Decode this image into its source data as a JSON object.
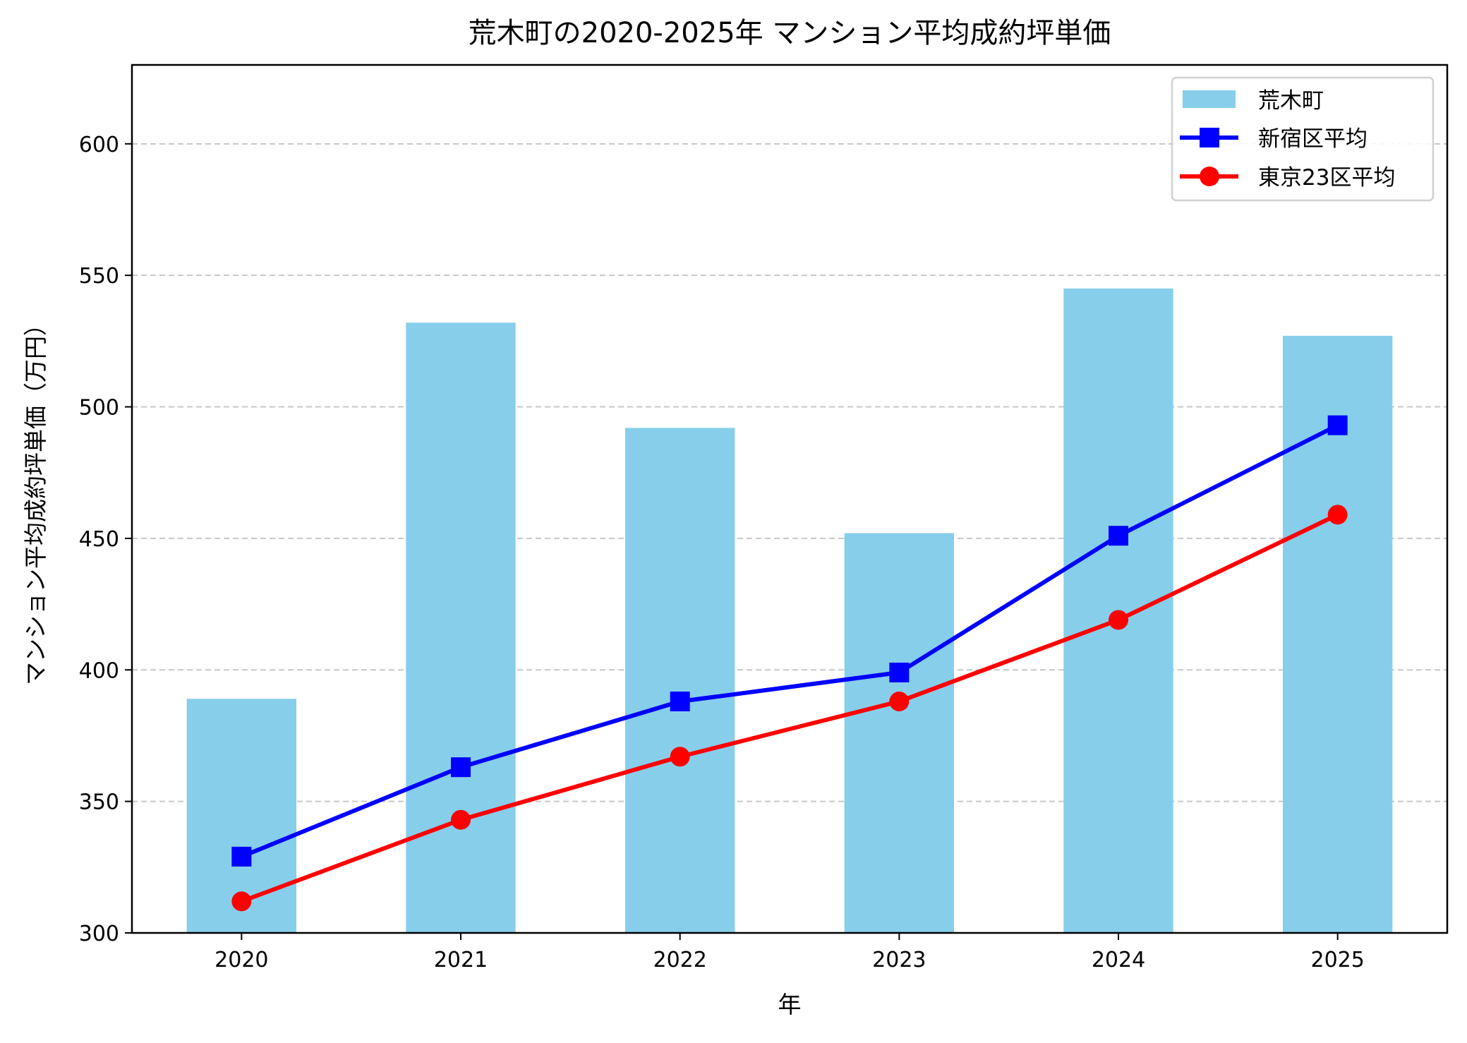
{
  "chart_data": {
    "type": "bar+line",
    "title": "荒木町の2020-2025年 マンション平均成約坪単価",
    "xlabel": "年",
    "ylabel": "マンション平均成約坪単価（万円）",
    "categories": [
      "2020",
      "2021",
      "2022",
      "2023",
      "2024",
      "2025"
    ],
    "ylim": [
      300,
      630
    ],
    "yticks": [
      300,
      350,
      400,
      450,
      500,
      550,
      600
    ],
    "grid": "y-dashed",
    "legend_position": "top-right",
    "series": [
      {
        "name": "荒木町",
        "kind": "bar",
        "color": "#87CEEB",
        "values": [
          389,
          532,
          492,
          452,
          545,
          527
        ]
      },
      {
        "name": "新宿区平均",
        "kind": "line",
        "marker": "square",
        "color": "#0000FF",
        "values": [
          329,
          363,
          388,
          399,
          451,
          493
        ]
      },
      {
        "name": "東京23区平均",
        "kind": "line",
        "marker": "circle",
        "color": "#FF0000",
        "values": [
          312,
          343,
          367,
          388,
          419,
          459
        ]
      }
    ]
  }
}
